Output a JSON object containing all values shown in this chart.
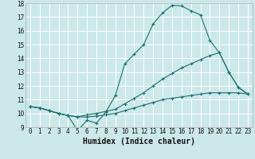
{
  "xlabel": "Humidex (Indice chaleur)",
  "bg_color": "#cce8e8",
  "grid_color": "#ffffff",
  "line_color": "#1a7070",
  "xlim": [
    -0.5,
    23.5
  ],
  "ylim": [
    9,
    18
  ],
  "xticks": [
    0,
    1,
    2,
    3,
    4,
    5,
    6,
    7,
    8,
    9,
    10,
    11,
    12,
    13,
    14,
    15,
    16,
    17,
    18,
    19,
    20,
    21,
    22,
    23
  ],
  "yticks": [
    9,
    10,
    11,
    12,
    13,
    14,
    15,
    16,
    17,
    18
  ],
  "series1_x": [
    0,
    1,
    2,
    3,
    4,
    5,
    6,
    7,
    8,
    9,
    10,
    11,
    12,
    13,
    14,
    15,
    16,
    17,
    18,
    19,
    20,
    21,
    22,
    23
  ],
  "series1_y": [
    10.5,
    10.4,
    10.2,
    10.0,
    9.85,
    8.75,
    9.5,
    9.3,
    10.1,
    11.3,
    13.6,
    14.3,
    15.0,
    16.5,
    17.3,
    17.85,
    17.8,
    17.45,
    17.15,
    15.3,
    14.4,
    13.0,
    11.9,
    11.4
  ],
  "series2_x": [
    0,
    1,
    2,
    3,
    4,
    5,
    6,
    7,
    8,
    9,
    10,
    11,
    12,
    13,
    14,
    15,
    16,
    17,
    18,
    19,
    20,
    21,
    22,
    23
  ],
  "series2_y": [
    10.5,
    10.4,
    10.2,
    10.0,
    9.85,
    9.75,
    9.75,
    9.8,
    9.9,
    10.0,
    10.2,
    10.4,
    10.6,
    10.8,
    11.0,
    11.1,
    11.2,
    11.3,
    11.4,
    11.5,
    11.5,
    11.5,
    11.5,
    11.4
  ],
  "series3_x": [
    0,
    1,
    2,
    3,
    4,
    5,
    6,
    7,
    8,
    9,
    10,
    11,
    12,
    13,
    14,
    15,
    16,
    17,
    18,
    19,
    20,
    21,
    22,
    23
  ],
  "series3_y": [
    10.5,
    10.4,
    10.2,
    10.0,
    9.85,
    9.75,
    9.9,
    10.0,
    10.15,
    10.3,
    10.7,
    11.1,
    11.5,
    12.0,
    12.5,
    12.9,
    13.3,
    13.6,
    13.9,
    14.2,
    14.4,
    13.0,
    11.9,
    11.4
  ],
  "xlabel_fontsize": 7,
  "tick_fontsize": 5.5
}
